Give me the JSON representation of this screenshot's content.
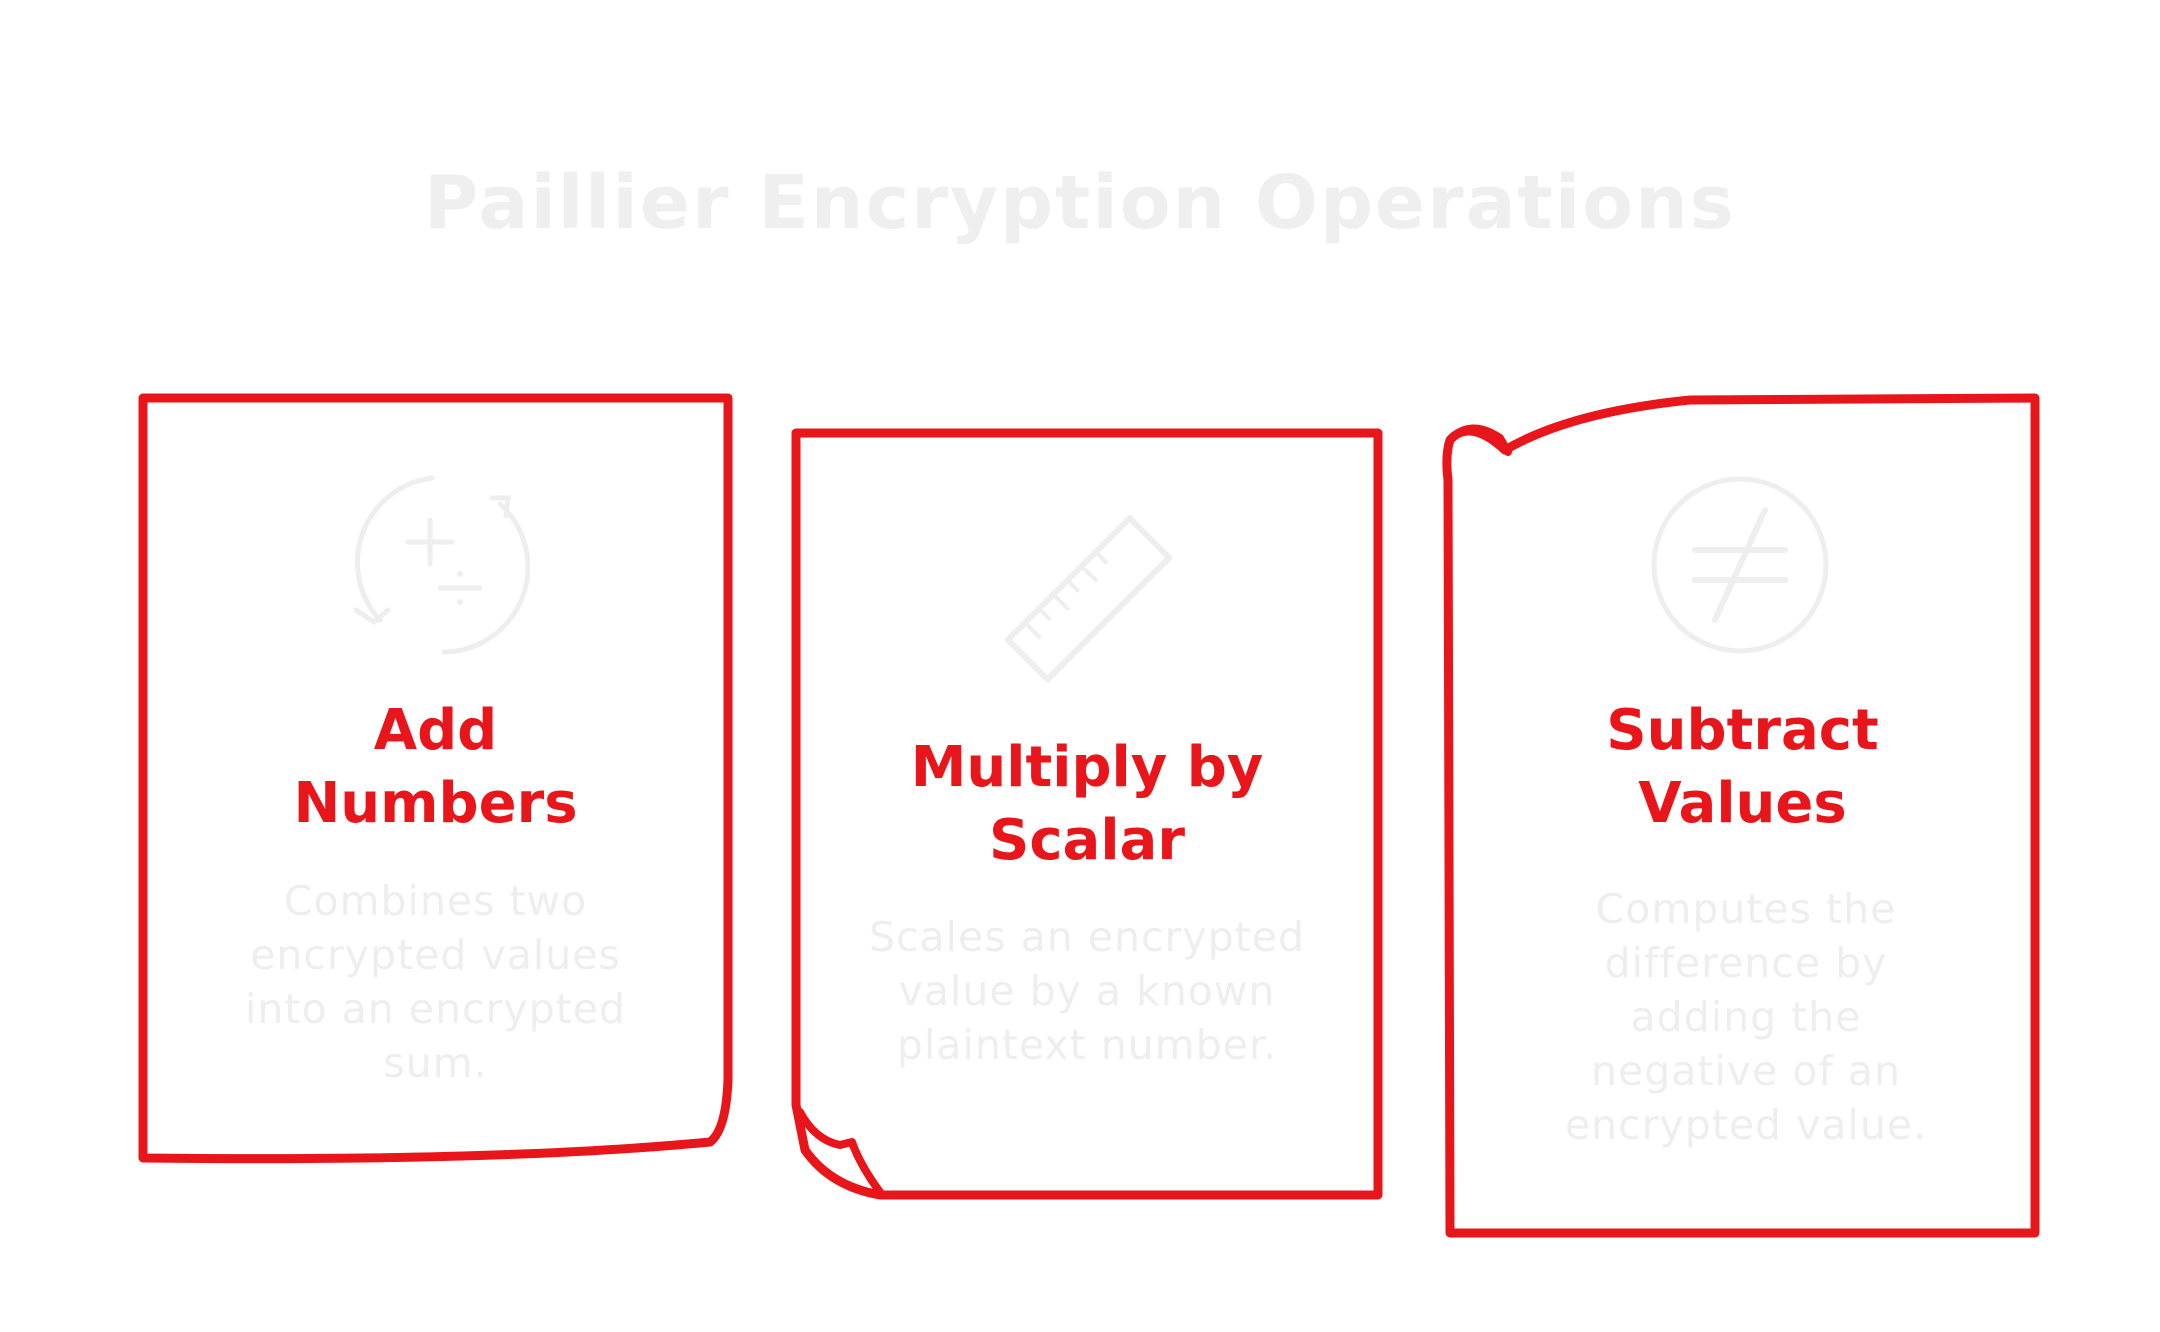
{
  "title": "Paillier Encryption Operations",
  "colors": {
    "accent": "#e8151b",
    "faded": "#eeeeee"
  },
  "cards": [
    {
      "title": "Add\nNumbers",
      "description": "Combines two encrypted values into an encrypted sum.",
      "icon": "add-divide-cycle-icon"
    },
    {
      "title": "Multiply by\nScalar",
      "description": "Scales an encrypted value by a known plaintext number.",
      "icon": "ruler-icon"
    },
    {
      "title": "Subtract\nValues",
      "description": "Computes the difference by adding the negative of an encrypted value.",
      "icon": "not-equal-icon"
    }
  ]
}
